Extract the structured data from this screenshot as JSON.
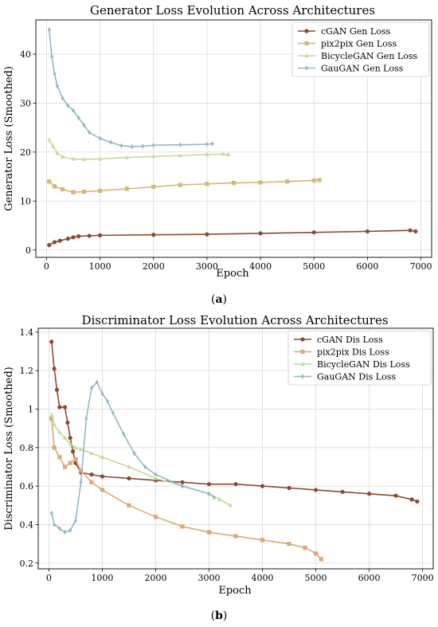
{
  "charts": [
    {
      "caption_letter": "a",
      "chart_data": {
        "type": "line",
        "title": "Generator Loss Evolution Across Architectures",
        "xlabel": "Epoch",
        "ylabel": "Generator Loss (Smoothed)",
        "xlim": [
          -200,
          7200
        ],
        "ylim": [
          -1.5,
          47
        ],
        "xticks": [
          0,
          1000,
          2000,
          3000,
          4000,
          5000,
          6000,
          7000
        ],
        "yticks": [
          0,
          10,
          20,
          30,
          40
        ],
        "grid": true,
        "legend_position": "top-right",
        "series": [
          {
            "name": "cGAN Gen Loss",
            "color": "#8c4a2f",
            "marker": "circle",
            "x": [
              50,
              150,
              250,
              400,
              500,
              600,
              800,
              1000,
              2000,
              3000,
              4000,
              5000,
              6000,
              6800,
              6900
            ],
            "y": [
              1.0,
              1.6,
              1.9,
              2.3,
              2.6,
              2.8,
              2.9,
              3.0,
              3.1,
              3.2,
              3.4,
              3.6,
              3.8,
              4.0,
              3.8
            ]
          },
          {
            "name": "pix2pix Gen Loss",
            "color": "#d4b870",
            "marker": "square",
            "x": [
              50,
              150,
              300,
              500,
              700,
              1000,
              1500,
              2000,
              2500,
              3000,
              3500,
              4000,
              4500,
              5000,
              5100
            ],
            "y": [
              14.0,
              13.0,
              12.4,
              11.8,
              11.9,
              12.1,
              12.5,
              12.9,
              13.3,
              13.5,
              13.7,
              13.8,
              14.0,
              14.2,
              14.3
            ]
          },
          {
            "name": "BicycleGAN Gen Loss",
            "color": "#c9d998",
            "marker": "triangle",
            "x": [
              50,
              120,
              200,
              300,
              500,
              700,
              1000,
              1500,
              2000,
              2500,
              3000,
              3300,
              3400
            ],
            "y": [
              22.5,
              21.2,
              19.8,
              19.0,
              18.6,
              18.5,
              18.6,
              18.9,
              19.1,
              19.3,
              19.5,
              19.6,
              19.5
            ]
          },
          {
            "name": "GauGAN Gen Loss",
            "color": "#93b8c4",
            "marker": "diamond",
            "x": [
              50,
              100,
              150,
              200,
              300,
              400,
              500,
              600,
              700,
              800,
              1000,
              1200,
              1400,
              1600,
              1800,
              2000,
              2500,
              3000,
              3100
            ],
            "y": [
              45.0,
              39.5,
              36.0,
              33.5,
              31.0,
              29.5,
              28.5,
              27.0,
              25.5,
              24.0,
              22.8,
              22.0,
              21.3,
              21.1,
              21.2,
              21.4,
              21.5,
              21.6,
              21.7
            ]
          }
        ]
      }
    },
    {
      "caption_letter": "b",
      "chart_data": {
        "type": "line",
        "title": "Discriminator Loss Evolution Across Architectures",
        "xlabel": "Epoch",
        "ylabel": "Discriminator Loss (Smoothed)",
        "xlim": [
          -200,
          7200
        ],
        "ylim": [
          0.17,
          1.42
        ],
        "xticks": [
          0,
          1000,
          2000,
          3000,
          4000,
          5000,
          6000,
          7000
        ],
        "yticks": [
          0.2,
          0.4,
          0.6,
          0.8,
          1.0,
          1.2,
          1.4
        ],
        "grid": true,
        "legend_position": "top-right",
        "series": [
          {
            "name": "cGAN Dis Loss",
            "color": "#8c4a2f",
            "marker": "circle",
            "x": [
              50,
              100,
              150,
              200,
              300,
              350,
              400,
              450,
              500,
              600,
              800,
              1000,
              1500,
              2000,
              2500,
              3000,
              3500,
              4000,
              4500,
              5000,
              5500,
              6000,
              6500,
              6800,
              6900
            ],
            "y": [
              1.35,
              1.21,
              1.1,
              1.01,
              1.01,
              0.93,
              0.85,
              0.78,
              0.72,
              0.67,
              0.66,
              0.65,
              0.64,
              0.63,
              0.62,
              0.61,
              0.61,
              0.6,
              0.59,
              0.58,
              0.57,
              0.56,
              0.55,
              0.53,
              0.52
            ]
          },
          {
            "name": "pix2pix Dis Loss",
            "color": "#dba873",
            "marker": "square",
            "x": [
              50,
              100,
              200,
              300,
              400,
              500,
              600,
              800,
              1000,
              1500,
              2000,
              2500,
              3000,
              3500,
              4000,
              4500,
              4800,
              5000,
              5100
            ],
            "y": [
              0.95,
              0.8,
              0.75,
              0.7,
              0.72,
              0.74,
              0.68,
              0.62,
              0.58,
              0.5,
              0.44,
              0.39,
              0.36,
              0.34,
              0.32,
              0.3,
              0.28,
              0.25,
              0.22
            ]
          },
          {
            "name": "BicycleGAN Dis Loss",
            "color": "#c4d998",
            "marker": "triangle",
            "x": [
              50,
              100,
              200,
              300,
              400,
              500,
              600,
              800,
              1000,
              1500,
              2000,
              2500,
              3000,
              3200,
              3400
            ],
            "y": [
              0.97,
              0.92,
              0.88,
              0.85,
              0.82,
              0.8,
              0.79,
              0.77,
              0.75,
              0.7,
              0.64,
              0.6,
              0.56,
              0.53,
              0.5
            ]
          },
          {
            "name": "GauGAN Dis Loss",
            "color": "#93b8c4",
            "marker": "diamond",
            "x": [
              50,
              100,
              200,
              300,
              400,
              500,
              600,
              700,
              800,
              900,
              1000,
              1100,
              1200,
              1400,
              1600,
              1800,
              2000,
              2500,
              3000,
              3100
            ],
            "y": [
              0.46,
              0.4,
              0.38,
              0.36,
              0.37,
              0.42,
              0.62,
              0.95,
              1.11,
              1.14,
              1.08,
              1.04,
              0.98,
              0.87,
              0.77,
              0.7,
              0.66,
              0.6,
              0.56,
              0.54
            ]
          }
        ]
      }
    }
  ]
}
